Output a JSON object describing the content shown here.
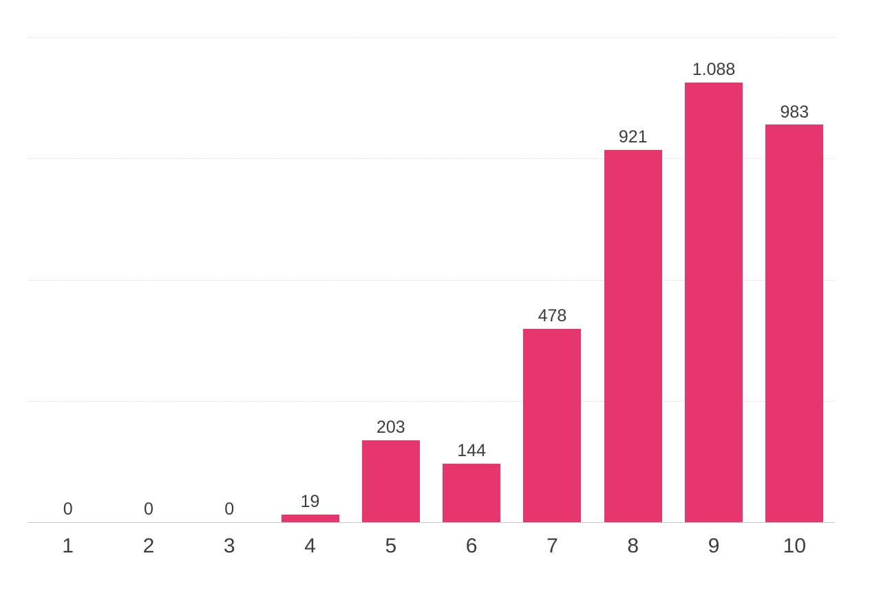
{
  "chart_data": {
    "type": "bar",
    "categories": [
      "1",
      "2",
      "3",
      "4",
      "5",
      "6",
      "7",
      "8",
      "9",
      "10"
    ],
    "values": [
      0,
      0,
      0,
      19,
      203,
      144,
      478,
      921,
      1088,
      983
    ],
    "value_labels": [
      "0",
      "0",
      "0",
      "19",
      "203",
      "144",
      "478",
      "921",
      "1.088",
      "983"
    ],
    "title": "",
    "xlabel": "",
    "ylabel": "",
    "ylim": [
      0,
      1200
    ],
    "gridline_values": [
      300,
      600,
      900,
      1200
    ],
    "grid": true,
    "legend": false,
    "y_axis_tick_labels_visible": false,
    "number_format": "thousands-dot-separator",
    "colors": {
      "bar": "#e7366e",
      "value_label": "#3d3d3d",
      "tick_label": "#3d3d3d",
      "axis_line": "#c8c8c8",
      "gridline": "#dbdbdb",
      "background": "#ffffff"
    }
  }
}
